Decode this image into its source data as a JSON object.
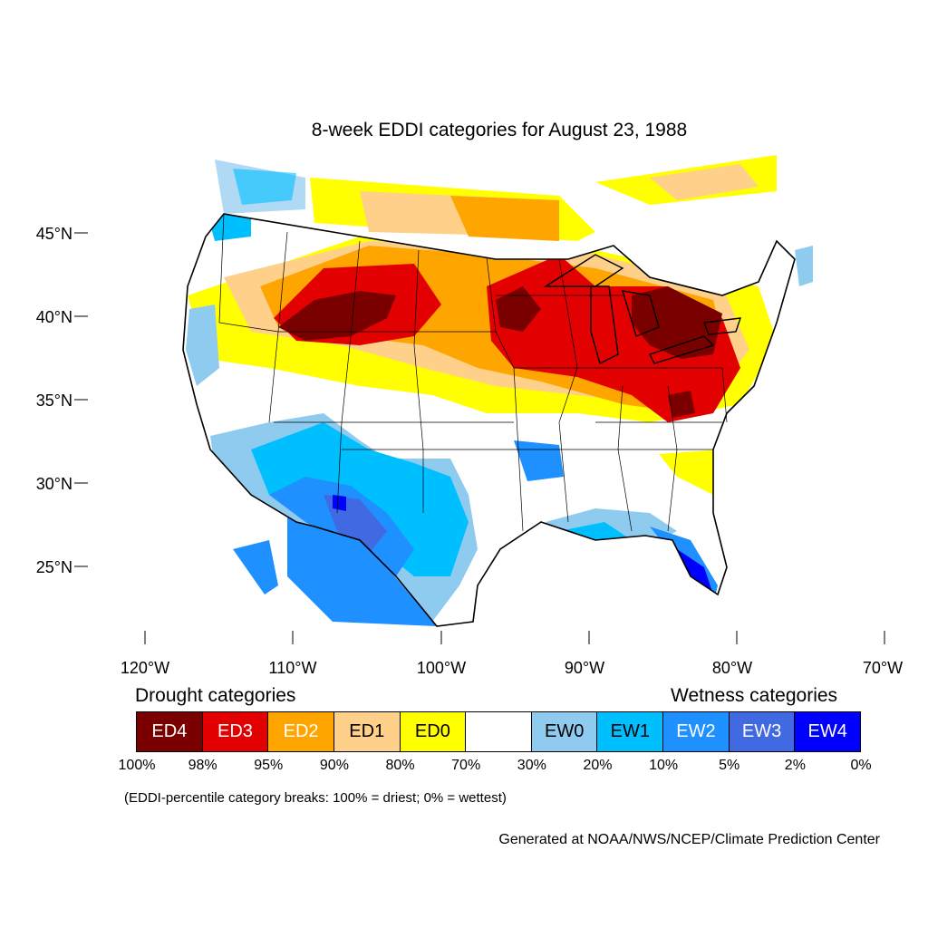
{
  "title": "8-week EDDI categories for August 23, 1988",
  "axes": {
    "lat_ticks": [
      "45°N",
      "40°N",
      "35°N",
      "30°N",
      "25°N"
    ],
    "lon_ticks": [
      "120°W",
      "110°W",
      "100°W",
      "90°W",
      "80°W",
      "70°W"
    ],
    "lon_range": [
      -124,
      -68.5
    ],
    "lat_range": [
      21,
      49.5
    ]
  },
  "legend": {
    "drought_heading": "Drought categories",
    "wetness_heading": "Wetness categories",
    "categories": [
      {
        "label": "ED4",
        "color": "#7a0000",
        "text_color": "#ffffff"
      },
      {
        "label": "ED3",
        "color": "#e30000",
        "text_color": "#ffffff"
      },
      {
        "label": "ED2",
        "color": "#ffa500",
        "text_color": "#ffffff"
      },
      {
        "label": "ED1",
        "color": "#fed08a",
        "text_color": "#000000"
      },
      {
        "label": "ED0",
        "color": "#ffff00",
        "text_color": "#000000"
      },
      {
        "label": "",
        "color": "#ffffff",
        "text_color": "#000000"
      },
      {
        "label": "EW0",
        "color": "#8ecbef",
        "text_color": "#000000"
      },
      {
        "label": "EW1",
        "color": "#00bfff",
        "text_color": "#000000"
      },
      {
        "label": "EW2",
        "color": "#1e90ff",
        "text_color": "#ffffff"
      },
      {
        "label": "EW3",
        "color": "#4169e1",
        "text_color": "#ffffff"
      },
      {
        "label": "EW4",
        "color": "#0000ff",
        "text_color": "#ffffff"
      }
    ],
    "breaks": [
      "100%",
      "98%",
      "95%",
      "90%",
      "80%",
      "70%",
      "30%",
      "20%",
      "10%",
      "5%",
      "2%",
      "0%"
    ]
  },
  "note": "(EDDI-percentile category breaks: 100% = driest; 0% = wettest)",
  "credit": "Generated at NOAA/NWS/NCEP/Climate Prediction Center"
}
